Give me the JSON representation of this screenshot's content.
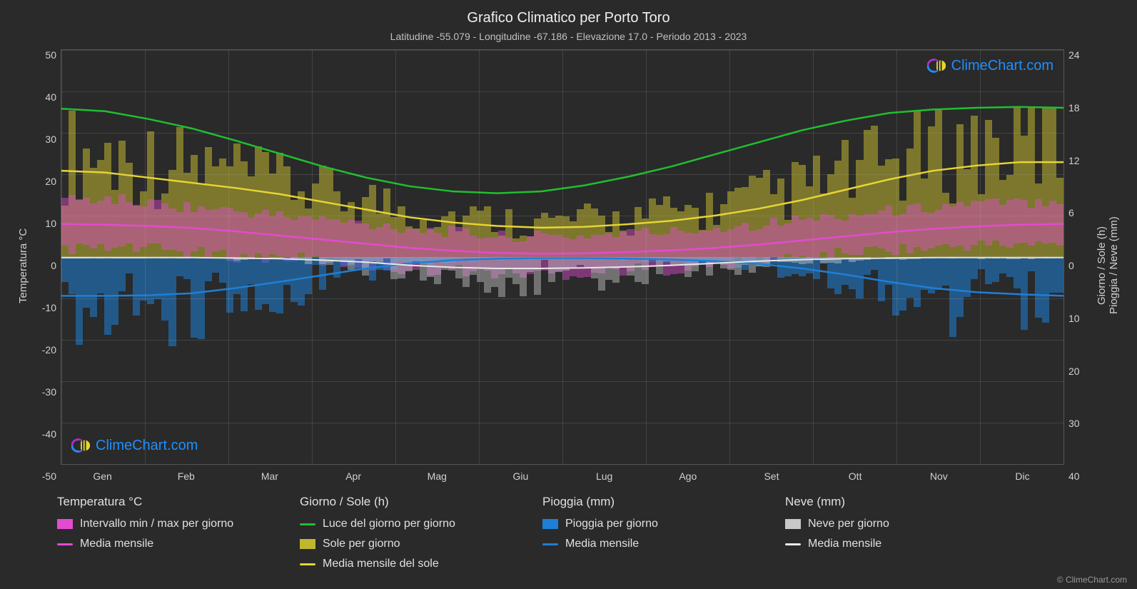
{
  "title": "Grafico Climatico per Porto Toro",
  "subtitle": "Latitudine -55.079 - Longitudine -67.186 - Elevazione 17.0 - Periodo 2013 - 2023",
  "axis_left_label": "Temperatura °C",
  "axis_right_top_label": "Giorno / Sole (h)",
  "axis_right_bottom_label": "Pioggia / Neve (mm)",
  "copyright": "© ClimeChart.com",
  "watermark_text": "ClimeChart.com",
  "watermark_color": "#1e90ff",
  "background_color": "#2a2a2a",
  "grid_color": "rgba(180,180,180,0.18)",
  "text_color": "#e0e0e0",
  "months": [
    "Gen",
    "Feb",
    "Mar",
    "Apr",
    "Mag",
    "Giu",
    "Lug",
    "Ago",
    "Set",
    "Ott",
    "Nov",
    "Dic"
  ],
  "y_left": {
    "min": -50,
    "max": 50,
    "ticks": [
      50,
      40,
      30,
      20,
      10,
      0,
      -10,
      -20,
      -30,
      -40,
      -50
    ]
  },
  "y_right_top": {
    "min": 0,
    "max": 24,
    "ticks": [
      24,
      18,
      12,
      6,
      0
    ]
  },
  "y_right_bottom": {
    "min": 0,
    "max": 40,
    "ticks": [
      0,
      10,
      20,
      30,
      40
    ]
  },
  "series": {
    "daylight": {
      "label": "Luce del giorno per giorno",
      "color": "#1fbf2f",
      "values_h": [
        17.2,
        16.9,
        16.0,
        14.9,
        13.5,
        12.0,
        10.5,
        9.2,
        8.2,
        7.6,
        7.4,
        7.6,
        8.3,
        9.3,
        10.5,
        11.9,
        13.3,
        14.7,
        15.8,
        16.7,
        17.1,
        17.3,
        17.4,
        17.3
      ]
    },
    "sun_mean": {
      "label": "Media mensile del sole",
      "color": "#e6d534",
      "values_h": [
        10.0,
        9.8,
        9.2,
        8.6,
        8.0,
        7.3,
        6.4,
        5.5,
        4.6,
        4.0,
        3.6,
        3.4,
        3.5,
        3.8,
        4.2,
        4.8,
        5.6,
        6.6,
        7.8,
        9.0,
        10.0,
        10.6,
        11.0,
        11.0
      ]
    },
    "temp_mean": {
      "label": "Media mensile",
      "color": "#e24bd0",
      "values_c": [
        8.0,
        7.8,
        7.5,
        7.0,
        6.2,
        5.2,
        4.2,
        3.2,
        2.2,
        1.5,
        1.0,
        0.8,
        0.9,
        1.2,
        1.6,
        2.2,
        3.0,
        4.0,
        5.0,
        6.0,
        6.8,
        7.4,
        7.8,
        8.0
      ]
    },
    "rain_mean": {
      "label": "Media mensile",
      "color": "#1e7fd6",
      "values_mm": [
        7.5,
        7.5,
        7.4,
        7.0,
        6.0,
        4.8,
        3.5,
        2.2,
        1.2,
        0.6,
        0.3,
        0.2,
        0.2,
        0.3,
        0.5,
        0.8,
        1.3,
        2.2,
        3.4,
        4.8,
        6.0,
        6.8,
        7.2,
        7.5
      ]
    },
    "snow_mean": {
      "label": "Media mensile",
      "color": "#e8e8e8",
      "values_mm": [
        0.1,
        0.1,
        0.1,
        0.1,
        0.2,
        0.3,
        0.6,
        1.0,
        1.6,
        2.0,
        2.2,
        2.2,
        2.1,
        1.9,
        1.6,
        1.2,
        0.8,
        0.5,
        0.3,
        0.2,
        0.1,
        0.1,
        0.1,
        0.1
      ]
    },
    "temp_range": {
      "label": "Intervallo min / max per giorno",
      "color": "#e24bd0",
      "fill": "rgba(226,75,208,0.45)",
      "min_c": [
        2,
        2,
        2,
        1,
        0,
        0,
        -1,
        -2,
        -3,
        -3,
        -4,
        -4,
        -4,
        -3,
        -3,
        -2,
        -1,
        0,
        1,
        2,
        2,
        3,
        3,
        3
      ],
      "max_c": [
        14,
        14,
        13,
        12,
        11,
        10,
        9,
        8,
        7,
        6,
        5,
        5,
        5,
        6,
        6,
        7,
        8,
        9,
        10,
        11,
        12,
        13,
        13,
        14
      ]
    },
    "sun_daily": {
      "label": "Sole per giorno",
      "color": "rgba(191,183,45,0.55)"
    },
    "rain_daily": {
      "label": "Pioggia per giorno",
      "color": "rgba(30,127,214,0.55)"
    },
    "snow_daily": {
      "label": "Neve per giorno",
      "color": "rgba(200,200,200,0.45)"
    }
  },
  "legend": [
    {
      "title": "Temperatura °C",
      "items": [
        {
          "swatch_type": "block",
          "color": "#e24bd0",
          "label": "Intervallo min / max per giorno"
        },
        {
          "swatch_type": "line",
          "color": "#e24bd0",
          "label": "Media mensile"
        }
      ]
    },
    {
      "title": "Giorno / Sole (h)",
      "items": [
        {
          "swatch_type": "line",
          "color": "#1fbf2f",
          "label": "Luce del giorno per giorno"
        },
        {
          "swatch_type": "block",
          "color": "#bfb72d",
          "label": "Sole per giorno"
        },
        {
          "swatch_type": "line",
          "color": "#e6d534",
          "label": "Media mensile del sole"
        }
      ]
    },
    {
      "title": "Pioggia (mm)",
      "items": [
        {
          "swatch_type": "block",
          "color": "#1e7fd6",
          "label": "Pioggia per giorno"
        },
        {
          "swatch_type": "line",
          "color": "#1e7fd6",
          "label": "Media mensile"
        }
      ]
    },
    {
      "title": "Neve (mm)",
      "items": [
        {
          "swatch_type": "block",
          "color": "#c8c8c8",
          "label": "Neve per giorno"
        },
        {
          "swatch_type": "line",
          "color": "#e8e8e8",
          "label": "Media mensile"
        }
      ]
    }
  ],
  "daily_bars_count": 140
}
